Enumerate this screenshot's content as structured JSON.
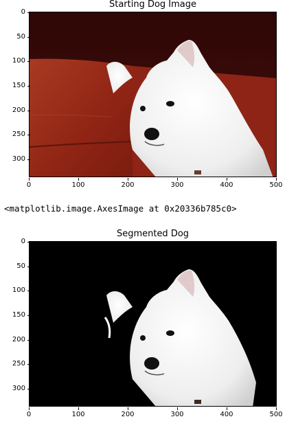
{
  "figure1": {
    "title": "Starting Dog Image",
    "y_ticks": [
      "0",
      "50",
      "100",
      "150",
      "200",
      "250",
      "300"
    ],
    "x_ticks": [
      "0",
      "100",
      "200",
      "300",
      "400",
      "500"
    ],
    "image_subject": "white-fluffy-dog-on-red-couch"
  },
  "output_line": "<matplotlib.image.AxesImage at 0x20336b785c0>",
  "figure2": {
    "title": "Segmented Dog",
    "y_ticks": [
      "0",
      "50",
      "100",
      "150",
      "200",
      "250",
      "300"
    ],
    "x_ticks": [
      "0",
      "100",
      "200",
      "300",
      "400",
      "500"
    ],
    "image_subject": "white-fluffy-dog-on-black-background"
  },
  "colors": {
    "couch_red": "#9e2a1a",
    "background_dark": "#3a0a08",
    "fur_white": "#f2f2f2",
    "mask_black": "#000000"
  }
}
